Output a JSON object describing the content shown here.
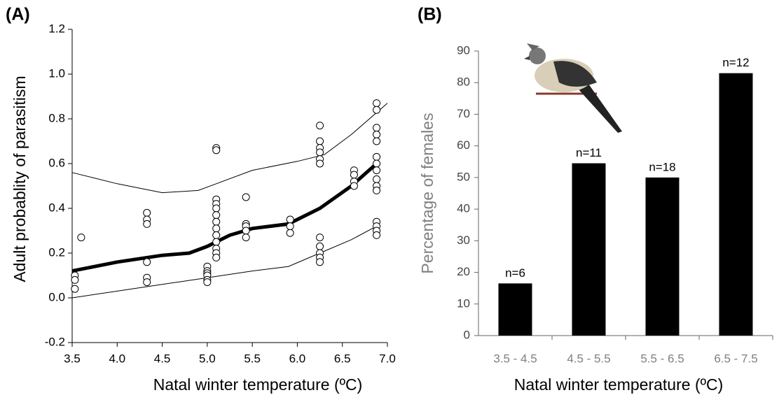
{
  "chart_data": [
    {
      "type": "scatter",
      "panel_label": "(A)",
      "xlabel": "Natal winter temperature (ºC)",
      "ylabel": "Adult probablity of parasitism",
      "xlim": [
        3.5,
        7.0
      ],
      "ylim": [
        -0.2,
        1.2
      ],
      "xticks": [
        3.5,
        {
          "value": 4,
          "label": "4.0"
        },
        4.5,
        {
          "value": 5,
          "label": "5.0"
        },
        5.5,
        {
          "value": 6,
          "label": "6.0"
        },
        6.5,
        {
          "value": 7,
          "label": "7.0"
        }
      ],
      "yticks": [
        -0.2,
        {
          "value": 0,
          "label": "0.0"
        },
        0.2,
        0.4,
        0.6,
        0.8,
        {
          "value": 1,
          "label": "1.0"
        },
        1.2
      ],
      "points": {
        "x": [
          3.53,
          3.53,
          3.53,
          3.6,
          4.33,
          4.33,
          4.33,
          4.33,
          4.33,
          4.33,
          5.0,
          5.0,
          5.0,
          5.0,
          5.0,
          5.0,
          5.1,
          5.1,
          5.1,
          5.1,
          5.1,
          5.1,
          5.1,
          5.1,
          5.1,
          5.1,
          5.1,
          5.1,
          5.1,
          5.43,
          5.43,
          5.43,
          5.43,
          5.43,
          5.92,
          5.92,
          5.92,
          6.25,
          6.25,
          6.25,
          6.25,
          6.25,
          6.25,
          6.25,
          6.25,
          6.25,
          6.25,
          6.25,
          6.63,
          6.63,
          6.63,
          6.63,
          6.88,
          6.88,
          6.88,
          6.88,
          6.88,
          6.88,
          6.88,
          6.88,
          6.88,
          6.88,
          6.88,
          6.88,
          6.88,
          6.88,
          6.88
        ],
        "y": [
          0.1,
          0.08,
          0.04,
          0.27,
          0.38,
          0.35,
          0.33,
          0.16,
          0.09,
          0.07,
          0.14,
          0.12,
          0.11,
          0.1,
          0.08,
          0.07,
          0.67,
          0.66,
          0.44,
          0.42,
          0.4,
          0.37,
          0.34,
          0.31,
          0.28,
          0.25,
          0.22,
          0.2,
          0.18,
          0.45,
          0.33,
          0.32,
          0.3,
          0.27,
          0.35,
          0.32,
          0.29,
          0.77,
          0.7,
          0.67,
          0.65,
          0.62,
          0.6,
          0.27,
          0.23,
          0.2,
          0.18,
          0.16,
          0.57,
          0.55,
          0.52,
          0.5,
          0.87,
          0.84,
          0.76,
          0.73,
          0.7,
          0.63,
          0.6,
          0.57,
          0.53,
          0.5,
          0.48,
          0.34,
          0.32,
          0.3,
          0.28
        ]
      },
      "lines": [
        {
          "color": "#000000",
          "width": 5,
          "x": [
            3.5,
            4.0,
            4.5,
            4.8,
            5.0,
            5.25,
            5.5,
            5.9,
            6.25,
            6.6,
            6.88
          ],
          "y": [
            0.12,
            0.16,
            0.19,
            0.2,
            0.23,
            0.28,
            0.31,
            0.33,
            0.4,
            0.5,
            0.6
          ]
        },
        {
          "color": "#000000",
          "width": 1,
          "x": [
            3.5,
            4.0,
            4.5,
            4.9,
            5.1,
            5.5,
            6.0,
            6.3,
            6.6,
            7.0
          ],
          "y": [
            0.56,
            0.51,
            0.47,
            0.48,
            0.51,
            0.57,
            0.61,
            0.64,
            0.73,
            0.87
          ]
        },
        {
          "color": "#000000",
          "width": 1,
          "x": [
            3.5,
            4.0,
            4.5,
            5.0,
            5.5,
            5.9,
            6.25,
            6.6,
            6.88
          ],
          "y": [
            0.0,
            0.03,
            0.06,
            0.09,
            0.12,
            0.14,
            0.2,
            0.26,
            0.32
          ]
        }
      ]
    },
    {
      "type": "bar",
      "panel_label": "(B)",
      "xlabel": "Natal winter temperature (ºC)",
      "ylabel": "Percentage of females",
      "categories": [
        "3.5 - 4.5",
        "4.5 - 5.5",
        "5.5 - 6.5",
        "6.5 - 7.5"
      ],
      "values": [
        16.5,
        54.5,
        50,
        83
      ],
      "annotations": [
        "n=6",
        "n=11",
        "n=18",
        "n=12"
      ],
      "color": "#000000",
      "ylim": [
        0,
        90
      ],
      "yticks": [
        0,
        10,
        20,
        30,
        40,
        50,
        60,
        70,
        80,
        90
      ]
    }
  ]
}
